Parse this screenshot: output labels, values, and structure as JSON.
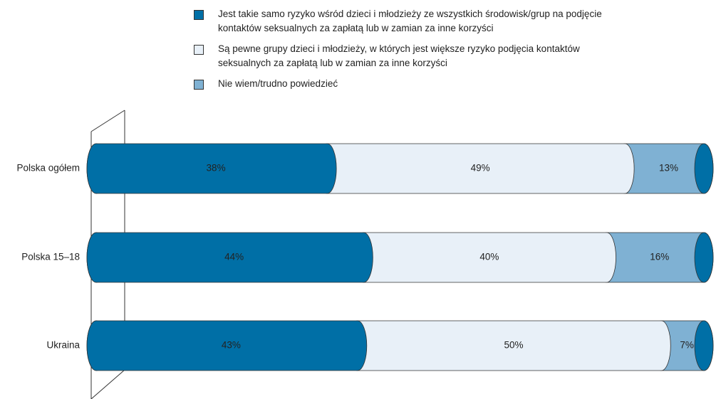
{
  "chart_data": {
    "type": "bar",
    "orientation": "horizontal",
    "stacked": true,
    "categories": [
      "Polska ogółem",
      "Polska 15–18",
      "Ukraina"
    ],
    "xlim": [
      0,
      100
    ],
    "series": [
      {
        "name": "Jest takie samo ryzyko wśród dzieci i młodzieży ze wszystkich środowisk/grup na podjęcie kontaktów seksualnych za zapłatą lub w zamian za inne korzyści",
        "color": "#006fa6",
        "values": [
          38,
          44,
          43
        ],
        "value_labels": [
          "38%",
          "44%",
          "43%"
        ]
      },
      {
        "name": "Są pewne grupy dzieci i młodzieży, w których jest większe ryzyko podjęcia kontaktów seksualnych za zapłatą lub w zamian za inne korzyści",
        "color": "#e8f0f8",
        "values": [
          49,
          40,
          50
        ],
        "value_labels": [
          "49%",
          "40%",
          "50%"
        ]
      },
      {
        "name": "Nie wiem/trudno powiedzieć",
        "color": "#7fb1d3",
        "values": [
          13,
          16,
          7
        ],
        "value_labels": [
          "13%",
          "16%",
          "7%"
        ]
      }
    ]
  }
}
